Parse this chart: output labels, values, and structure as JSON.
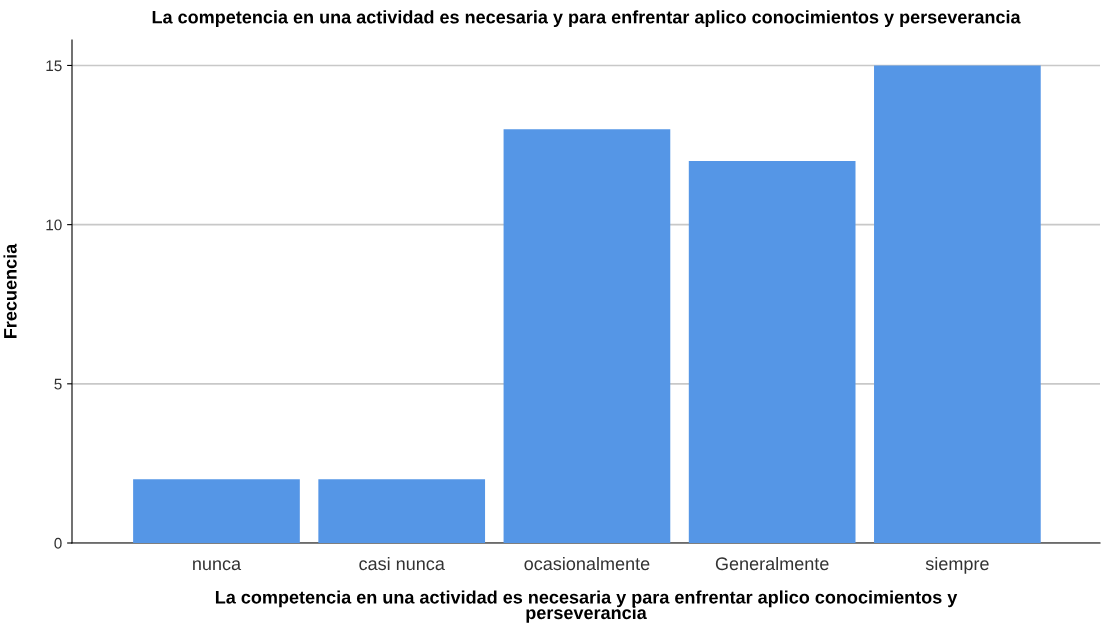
{
  "chart_data": {
    "type": "bar",
    "title": "La competencia en una actividad es necesaria y para enfrentar aplico conocimientos y perseverancia",
    "xlabel": "La competencia en una actividad es necesaria y para enfrentar aplico conocimientos y\nperseverancia",
    "ylabel": "Frecuencia",
    "categories": [
      "nunca",
      "casi nunca",
      "ocasionalmente",
      "Generalmente",
      "siempre"
    ],
    "values": [
      2,
      2,
      13,
      12,
      15
    ],
    "color": "#5596e6",
    "ylim": [
      0,
      15.8
    ],
    "yticks": [
      0,
      5,
      10,
      15
    ],
    "grid": "y"
  }
}
